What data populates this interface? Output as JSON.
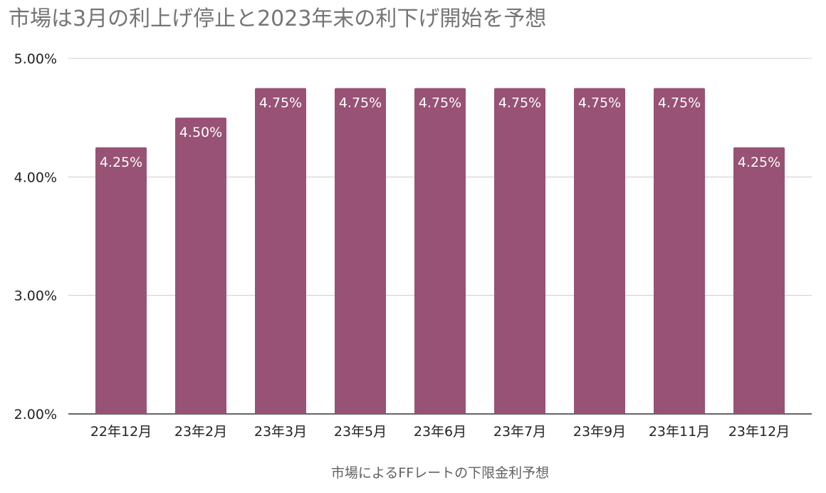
{
  "chart_data": {
    "type": "bar",
    "title": "市場は3月の利上げ停止と2023年末の利下げ開始を予想",
    "xlabel": "市場によるFFレートの下限金利予想",
    "ylabel": "",
    "categories": [
      "22年12月",
      "23年2月",
      "23年3月",
      "23年5月",
      "23年6月",
      "23年7月",
      "23年9月",
      "23年11月",
      "23年12月"
    ],
    "values": [
      4.25,
      4.5,
      4.75,
      4.75,
      4.75,
      4.75,
      4.75,
      4.75,
      4.25
    ],
    "value_labels": [
      "4.25%",
      "4.50%",
      "4.75%",
      "4.75%",
      "4.75%",
      "4.75%",
      "4.75%",
      "4.75%",
      "4.25%"
    ],
    "ylim": [
      2.0,
      5.0
    ],
    "yticks": [
      2.0,
      3.0,
      4.0,
      5.0
    ],
    "ytick_labels": [
      "2.00%",
      "3.00%",
      "4.00%",
      "5.00%"
    ],
    "grid": true,
    "legend": "none",
    "bar_color": "#985275"
  }
}
